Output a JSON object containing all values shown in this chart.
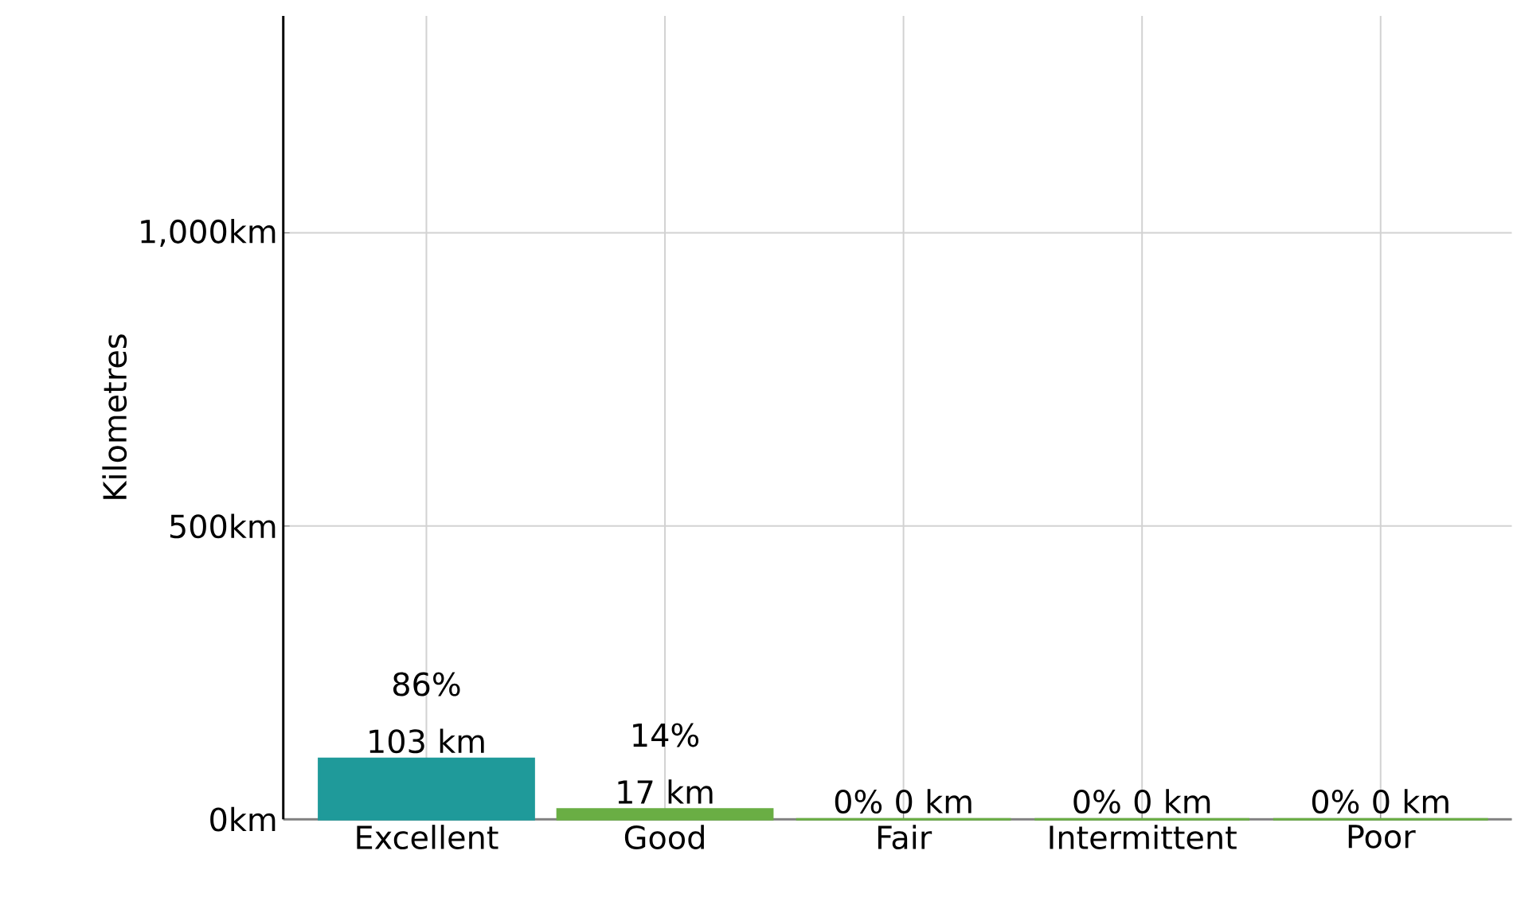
{
  "chart_data": {
    "type": "bar",
    "ylabel": "Kilometres",
    "categories": [
      "Excellent",
      "Good",
      "Fair",
      "Intermittent",
      "Poor"
    ],
    "values": [
      103,
      17,
      0,
      0,
      0
    ],
    "colors": [
      "#1f9a9a",
      "#6aae44",
      "#6aae44",
      "#6aae44",
      "#6aae44"
    ],
    "value_labels": [
      "86% 103 km",
      "14% 17 km",
      "0% 0 km",
      "0% 0 km",
      "0% 0 km"
    ],
    "ylim": [
      0,
      1370
    ],
    "yticks": [
      {
        "value": 0,
        "label": "0km"
      },
      {
        "value": 500,
        "label": "500km"
      },
      {
        "value": 1000,
        "label": "1,000km"
      }
    ],
    "grid": true
  }
}
